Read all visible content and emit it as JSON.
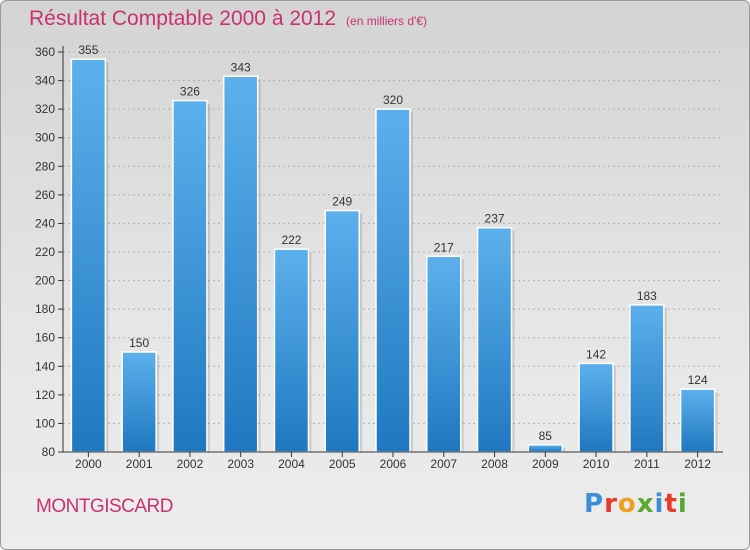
{
  "header": {
    "title": "Résultat Comptable 2000 à 2012",
    "unit": "(en milliers d'€)"
  },
  "footer": {
    "town": "MONTGISCARD",
    "logo_letters": [
      "P",
      "r",
      "o",
      "x",
      "i",
      "t",
      "i"
    ],
    "logo_colors": [
      "#3a8fd6",
      "#e8392a",
      "#f0a020",
      "#5aa830",
      "#3a8fd6",
      "#e8392a",
      "#5aa830"
    ]
  },
  "colors": {
    "title": "#c8326e",
    "bar_top": "#5cb0ec",
    "bar_bottom": "#1f78c0",
    "axis": "#333333",
    "grid": "#b0b0b0"
  },
  "chart_data": {
    "type": "bar",
    "title": "Résultat Comptable 2000 à 2012",
    "xlabel": "",
    "ylabel": "",
    "categories": [
      "2000",
      "2001",
      "2002",
      "2003",
      "2004",
      "2005",
      "2006",
      "2007",
      "2008",
      "2009",
      "2010",
      "2011",
      "2012"
    ],
    "values": [
      355,
      150,
      326,
      343,
      222,
      249,
      320,
      217,
      237,
      85,
      142,
      183,
      124
    ],
    "ylim": [
      80,
      360
    ],
    "yticks": [
      80,
      100,
      120,
      140,
      160,
      180,
      200,
      220,
      240,
      260,
      280,
      300,
      320,
      340,
      360
    ],
    "grid": true,
    "legend": "none"
  }
}
